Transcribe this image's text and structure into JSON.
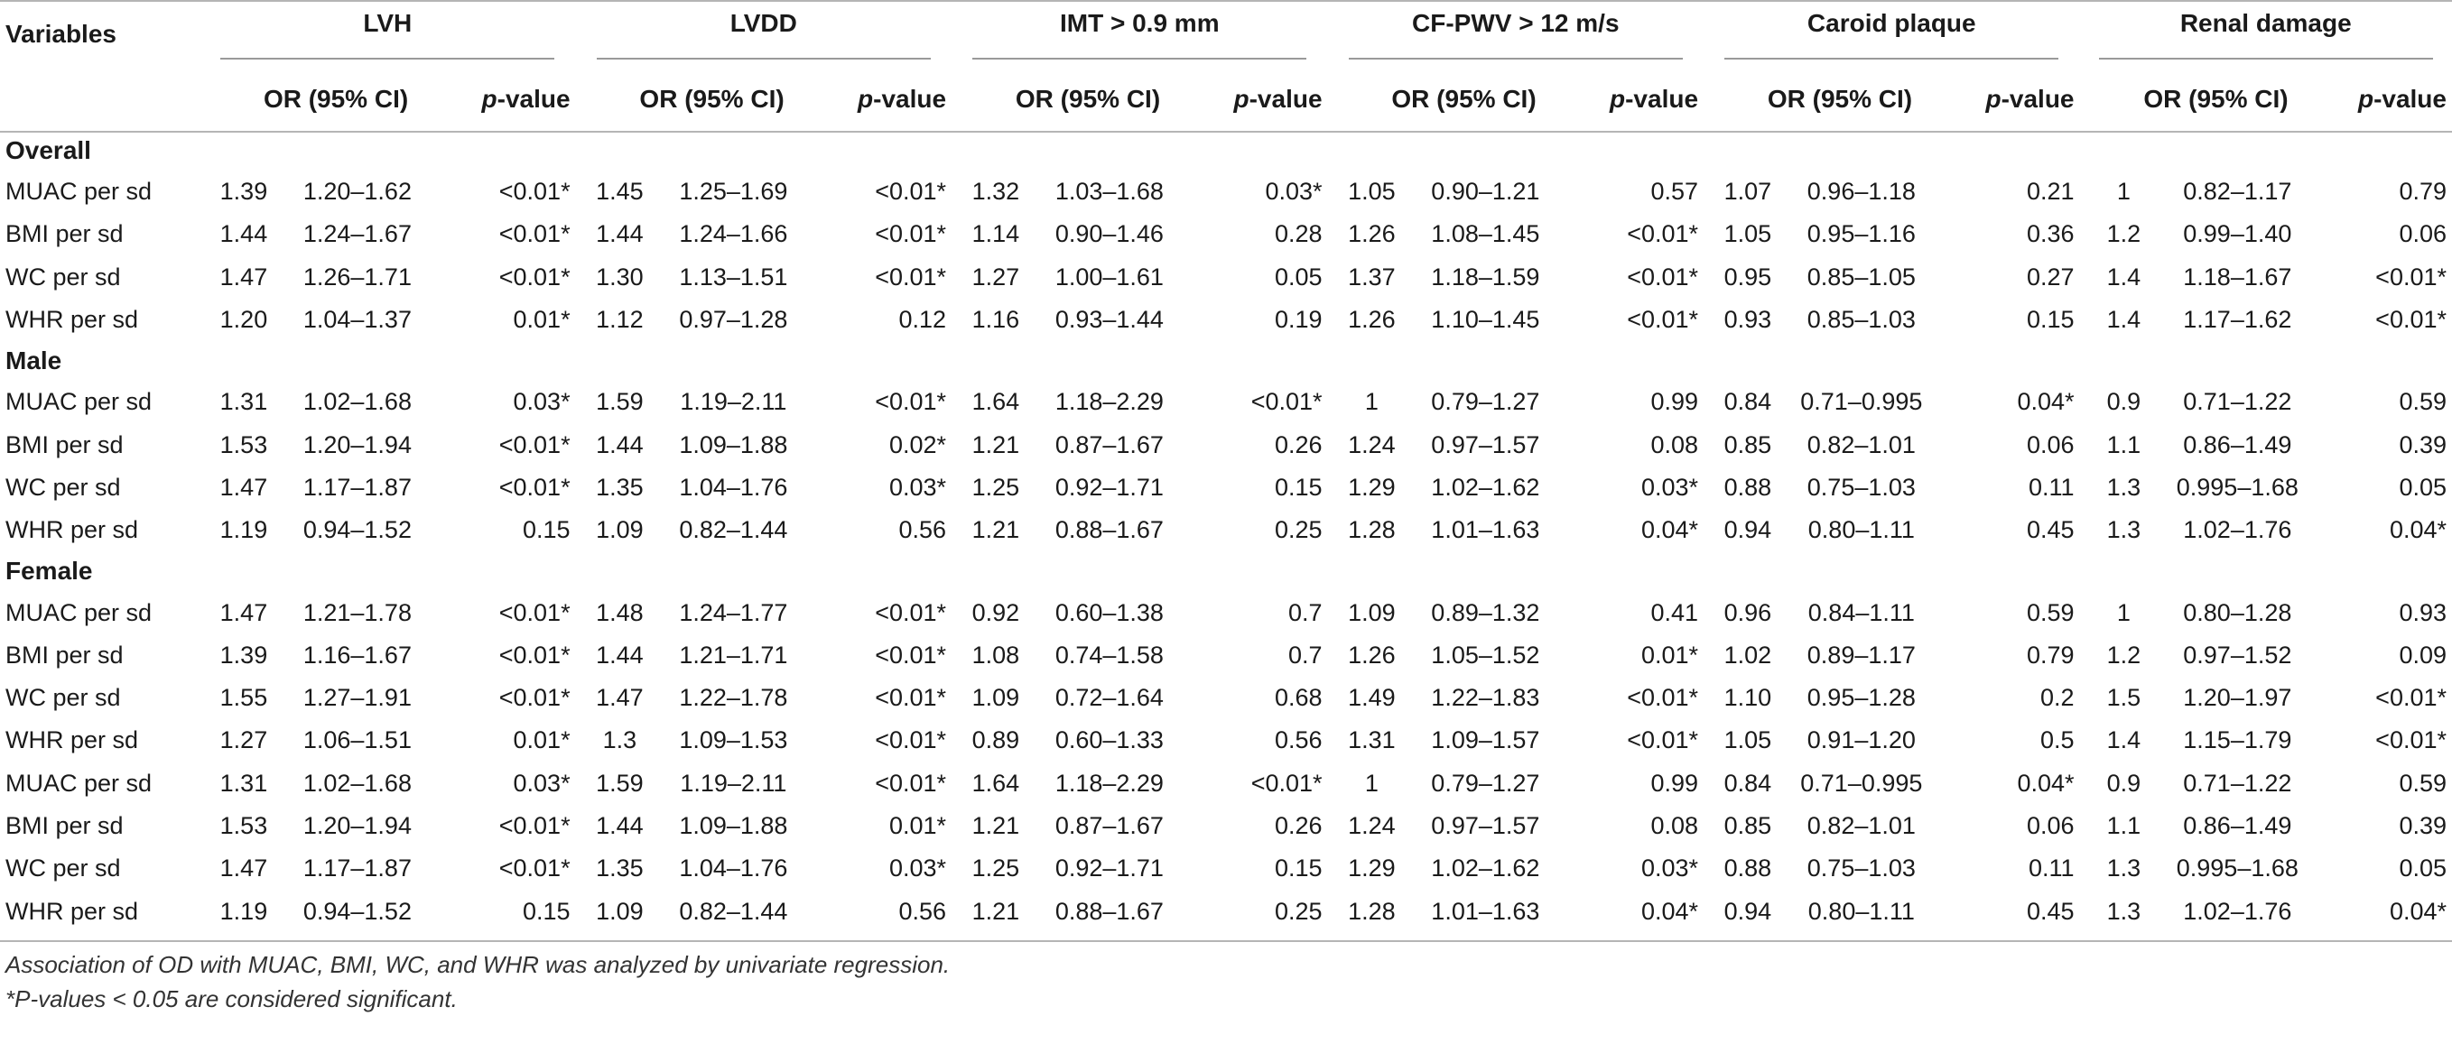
{
  "header": {
    "variables_label": "Variables",
    "groups": [
      "LVH",
      "LVDD",
      "IMT > 0.9 mm",
      "CF-PWV > 12 m/s",
      "Caroid plaque",
      "Renal damage"
    ],
    "sub_or": "OR (95% CI)",
    "sub_p_italic": "p",
    "sub_p_rest": "-value"
  },
  "sections": [
    {
      "title": "Overall",
      "rows": [
        {
          "label": "MUAC per sd",
          "cells": [
            "1.39",
            "1.20–1.62",
            "<0.01*",
            "1.45",
            "1.25–1.69",
            "<0.01*",
            "1.32",
            "1.03–1.68",
            "0.03*",
            "1.05",
            "0.90–1.21",
            "0.57",
            "1.07",
            "0.96–1.18",
            "0.21",
            "1",
            "0.82–1.17",
            "0.79"
          ]
        },
        {
          "label": "BMI per sd",
          "cells": [
            "1.44",
            "1.24–1.67",
            "<0.01*",
            "1.44",
            "1.24–1.66",
            "<0.01*",
            "1.14",
            "0.90–1.46",
            "0.28",
            "1.26",
            "1.08–1.45",
            "<0.01*",
            "1.05",
            "0.95–1.16",
            "0.36",
            "1.2",
            "0.99–1.40",
            "0.06"
          ]
        },
        {
          "label": "WC per sd",
          "cells": [
            "1.47",
            "1.26–1.71",
            "<0.01*",
            "1.30",
            "1.13–1.51",
            "<0.01*",
            "1.27",
            "1.00–1.61",
            "0.05",
            "1.37",
            "1.18–1.59",
            "<0.01*",
            "0.95",
            "0.85–1.05",
            "0.27",
            "1.4",
            "1.18–1.67",
            "<0.01*"
          ]
        },
        {
          "label": "WHR per sd",
          "cells": [
            "1.20",
            "1.04–1.37",
            "0.01*",
            "1.12",
            "0.97–1.28",
            "0.12",
            "1.16",
            "0.93–1.44",
            "0.19",
            "1.26",
            "1.10–1.45",
            "<0.01*",
            "0.93",
            "0.85–1.03",
            "0.15",
            "1.4",
            "1.17–1.62",
            "<0.01*"
          ]
        }
      ]
    },
    {
      "title": "Male",
      "rows": [
        {
          "label": "MUAC per sd",
          "cells": [
            "1.31",
            "1.02–1.68",
            "0.03*",
            "1.59",
            "1.19–2.11",
            "<0.01*",
            "1.64",
            "1.18–2.29",
            "<0.01*",
            "1",
            "0.79–1.27",
            "0.99",
            "0.84",
            "0.71–0.995",
            "0.04*",
            "0.9",
            "0.71–1.22",
            "0.59"
          ]
        },
        {
          "label": "BMI per sd",
          "cells": [
            "1.53",
            "1.20–1.94",
            "<0.01*",
            "1.44",
            "1.09–1.88",
            "0.02*",
            "1.21",
            "0.87–1.67",
            "0.26",
            "1.24",
            "0.97–1.57",
            "0.08",
            "0.85",
            "0.82–1.01",
            "0.06",
            "1.1",
            "0.86–1.49",
            "0.39"
          ]
        },
        {
          "label": "WC per sd",
          "cells": [
            "1.47",
            "1.17–1.87",
            "<0.01*",
            "1.35",
            "1.04–1.76",
            "0.03*",
            "1.25",
            "0.92–1.71",
            "0.15",
            "1.29",
            "1.02–1.62",
            "0.03*",
            "0.88",
            "0.75–1.03",
            "0.11",
            "1.3",
            "0.995–1.68",
            "0.05"
          ]
        },
        {
          "label": "WHR per sd",
          "cells": [
            "1.19",
            "0.94–1.52",
            "0.15",
            "1.09",
            "0.82–1.44",
            "0.56",
            "1.21",
            "0.88–1.67",
            "0.25",
            "1.28",
            "1.01–1.63",
            "0.04*",
            "0.94",
            "0.80–1.11",
            "0.45",
            "1.3",
            "1.02–1.76",
            "0.04*"
          ]
        }
      ]
    },
    {
      "title": "Female",
      "rows": [
        {
          "label": "MUAC per sd",
          "cells": [
            "1.47",
            "1.21–1.78",
            "<0.01*",
            "1.48",
            "1.24–1.77",
            "<0.01*",
            "0.92",
            "0.60–1.38",
            "0.7",
            "1.09",
            "0.89–1.32",
            "0.41",
            "0.96",
            "0.84–1.11",
            "0.59",
            "1",
            "0.80–1.28",
            "0.93"
          ]
        },
        {
          "label": "BMI per sd",
          "cells": [
            "1.39",
            "1.16–1.67",
            "<0.01*",
            "1.44",
            "1.21–1.71",
            "<0.01*",
            "1.08",
            "0.74–1.58",
            "0.7",
            "1.26",
            "1.05–1.52",
            "0.01*",
            "1.02",
            "0.89–1.17",
            "0.79",
            "1.2",
            "0.97–1.52",
            "0.09"
          ]
        },
        {
          "label": "WC per sd",
          "cells": [
            "1.55",
            "1.27–1.91",
            "<0.01*",
            "1.47",
            "1.22–1.78",
            "<0.01*",
            "1.09",
            "0.72–1.64",
            "0.68",
            "1.49",
            "1.22–1.83",
            "<0.01*",
            "1.10",
            "0.95–1.28",
            "0.2",
            "1.5",
            "1.20–1.97",
            "<0.01*"
          ]
        },
        {
          "label": "WHR per sd",
          "cells": [
            "1.27",
            "1.06–1.51",
            "0.01*",
            "1.3",
            "1.09–1.53",
            "<0.01*",
            "0.89",
            "0.60–1.33",
            "0.56",
            "1.31",
            "1.09–1.57",
            "<0.01*",
            "1.05",
            "0.91–1.20",
            "0.5",
            "1.4",
            "1.15–1.79",
            "<0.01*"
          ]
        },
        {
          "label": "MUAC per sd",
          "cells": [
            "1.31",
            "1.02–1.68",
            "0.03*",
            "1.59",
            "1.19–2.11",
            "<0.01*",
            "1.64",
            "1.18–2.29",
            "<0.01*",
            "1",
            "0.79–1.27",
            "0.99",
            "0.84",
            "0.71–0.995",
            "0.04*",
            "0.9",
            "0.71–1.22",
            "0.59"
          ]
        },
        {
          "label": "BMI per sd",
          "cells": [
            "1.53",
            "1.20–1.94",
            "<0.01*",
            "1.44",
            "1.09–1.88",
            "0.01*",
            "1.21",
            "0.87–1.67",
            "0.26",
            "1.24",
            "0.97–1.57",
            "0.08",
            "0.85",
            "0.82–1.01",
            "0.06",
            "1.1",
            "0.86–1.49",
            "0.39"
          ]
        },
        {
          "label": "WC per sd",
          "cells": [
            "1.47",
            "1.17–1.87",
            "<0.01*",
            "1.35",
            "1.04–1.76",
            "0.03*",
            "1.25",
            "0.92–1.71",
            "0.15",
            "1.29",
            "1.02–1.62",
            "0.03*",
            "0.88",
            "0.75–1.03",
            "0.11",
            "1.3",
            "0.995–1.68",
            "0.05"
          ]
        },
        {
          "label": "WHR per sd",
          "cells": [
            "1.19",
            "0.94–1.52",
            "0.15",
            "1.09",
            "0.82–1.44",
            "0.56",
            "1.21",
            "0.88–1.67",
            "0.25",
            "1.28",
            "1.01–1.63",
            "0.04*",
            "0.94",
            "0.80–1.11",
            "0.45",
            "1.3",
            "1.02–1.76",
            "0.04*"
          ]
        }
      ]
    }
  ],
  "footnotes": [
    "Association of OD with MUAC, BMI, WC, and WHR was analyzed by univariate regression.",
    "*P-values < 0.05 are considered significant."
  ]
}
